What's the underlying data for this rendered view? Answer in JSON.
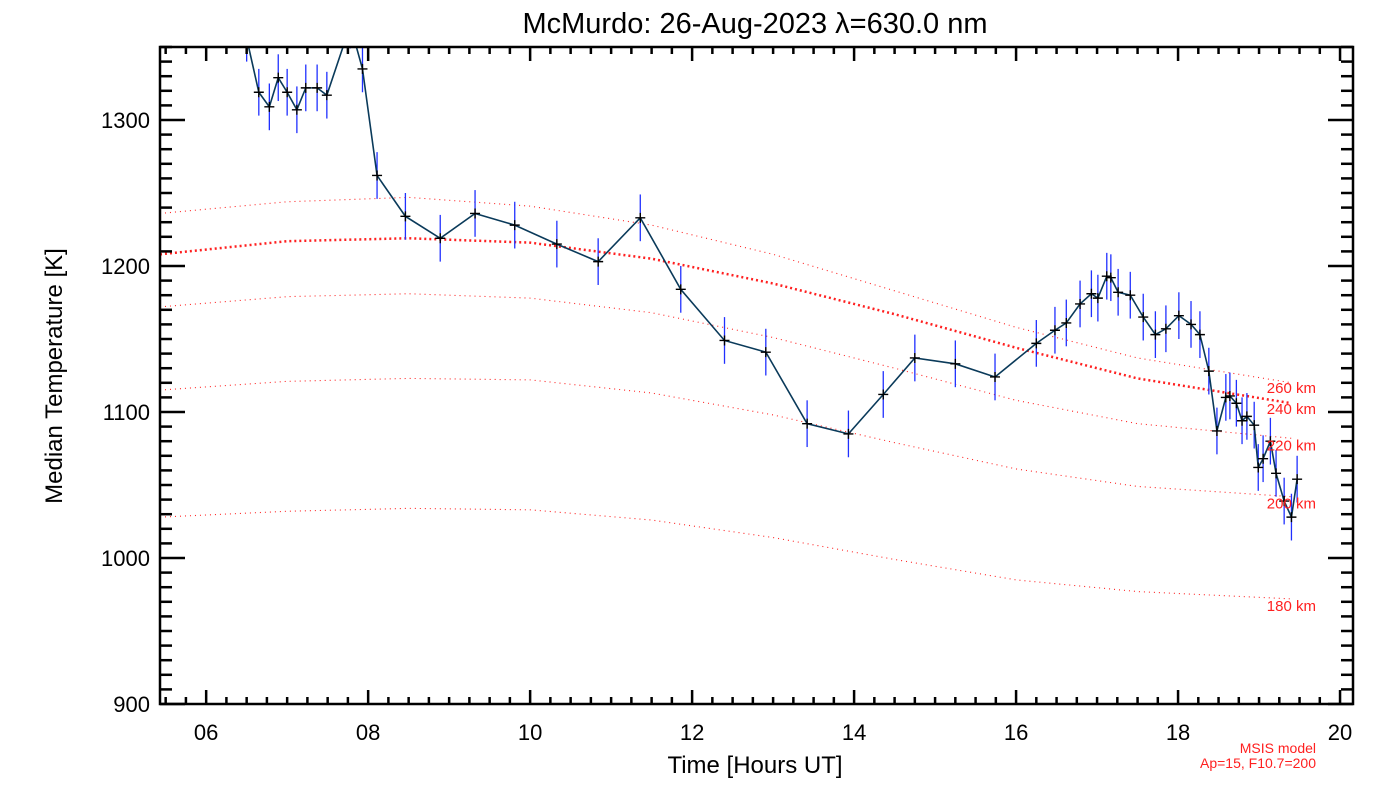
{
  "chart_data": {
    "type": "line",
    "title": "McMurdo: 26-Aug-2023 λ=630.0 nm",
    "xlabel": "Time [Hours UT]",
    "ylabel": "Median Temperature [K]",
    "xlim": [
      5.43,
      20.16
    ],
    "ylim": [
      900,
      1350
    ],
    "xticks": [
      6,
      8,
      10,
      12,
      14,
      16,
      18,
      20
    ],
    "xtick_labels": [
      "06",
      "08",
      "10",
      "12",
      "14",
      "16",
      "18",
      "20"
    ],
    "yticks": [
      900,
      1000,
      1100,
      1200,
      1300
    ],
    "ytick_labels": [
      "900",
      "1000",
      "1100",
      "1200",
      "1300"
    ],
    "grid": false,
    "series": [
      {
        "name": "Median temperature",
        "color": "#0a3a5a",
        "marker_color": "#000000",
        "errorbar_color": "#2030ff",
        "x": [
          6.5,
          6.65,
          6.78,
          6.89,
          7.0,
          7.12,
          7.23,
          7.37,
          7.49,
          7.78,
          7.93,
          8.11,
          8.46,
          8.89,
          9.32,
          9.81,
          10.33,
          10.84,
          11.36,
          11.86,
          12.4,
          12.91,
          13.42,
          13.93,
          14.36,
          14.75,
          15.25,
          15.74,
          16.25,
          16.48,
          16.62,
          16.79,
          16.93,
          17.01,
          17.12,
          17.17,
          17.26,
          17.41,
          17.57,
          17.72,
          17.85,
          18.01,
          18.16,
          18.27,
          18.38,
          18.48,
          18.59,
          18.64,
          18.72,
          18.79,
          18.85,
          18.94,
          18.99,
          19.05,
          19.14,
          19.21,
          19.31,
          19.4,
          19.47
        ],
        "y": [
          1356,
          1319,
          1309,
          1329,
          1319,
          1307,
          1322,
          1322,
          1317,
          1365,
          1335,
          1262,
          1234,
          1219,
          1236,
          1228,
          1215,
          1203,
          1233,
          1184,
          1149,
          1141,
          1092,
          1085,
          1112,
          1137,
          1133,
          1124,
          1147,
          1156,
          1161,
          1174,
          1181,
          1178,
          1193,
          1192,
          1182,
          1180,
          1165,
          1153,
          1157,
          1166,
          1160,
          1153,
          1128,
          1087,
          1110,
          1111,
          1106,
          1094,
          1097,
          1091,
          1062,
          1068,
          1080,
          1058,
          1039,
          1028,
          1054
        ],
        "yerr": 16
      }
    ],
    "model_curves": {
      "x": [
        5.43,
        7,
        8.5,
        10,
        11.5,
        13,
        14.5,
        16,
        17.5,
        19.4
      ],
      "color": "#ff2020",
      "curves": [
        {
          "label": "260 km",
          "y": [
            1236,
            1244,
            1247,
            1241,
            1228,
            1208,
            1183,
            1158,
            1137,
            1120
          ],
          "thick": false
        },
        {
          "label": "240 km",
          "y": [
            1208,
            1217,
            1219,
            1216,
            1205,
            1188,
            1167,
            1144,
            1123,
            1106
          ],
          "thick": true
        },
        {
          "label": "220 km",
          "y": [
            1172,
            1179,
            1181,
            1178,
            1168,
            1151,
            1130,
            1108,
            1092,
            1082
          ],
          "thick": false
        },
        {
          "label": "200 km",
          "y": [
            1115,
            1121,
            1123,
            1122,
            1113,
            1098,
            1079,
            1061,
            1049,
            1042
          ],
          "thick": false
        },
        {
          "label": "180 km",
          "y": [
            1028,
            1032,
            1034,
            1033,
            1026,
            1014,
            999,
            985,
            977,
            972
          ],
          "thick": false
        }
      ]
    },
    "annotations": {
      "model_name": "MSIS model",
      "model_params": "Ap=15, F10.7=200"
    }
  }
}
